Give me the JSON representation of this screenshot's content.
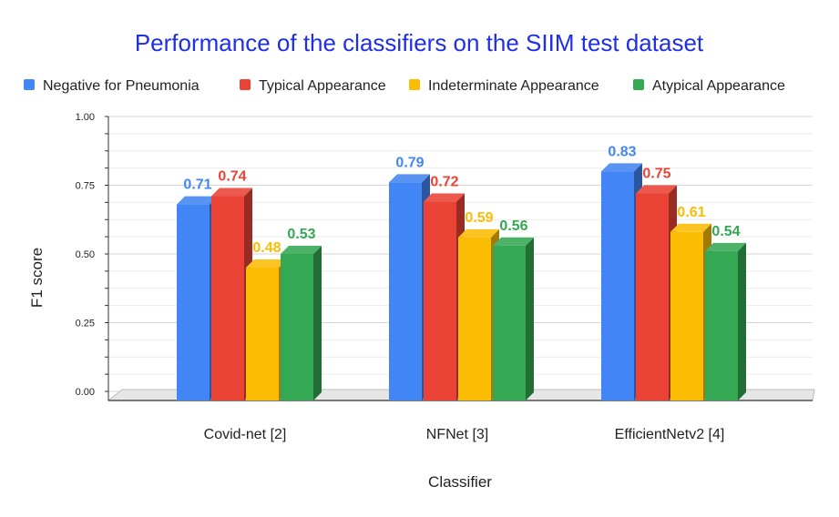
{
  "chart_data": {
    "type": "bar",
    "title": "Performance of the classifiers on the SIIM test dataset",
    "xlabel": "Classifier",
    "ylabel": "F1 score",
    "categories": [
      "Covid-net [2]",
      "NFNet [3]",
      "EfficientNetv2 [4]"
    ],
    "series": [
      {
        "name": "Negative for Pneumonia",
        "color": "#4285f4",
        "labels": [
          "0.71",
          "0.79",
          "0.83"
        ],
        "values": [
          0.71,
          0.79,
          0.83
        ]
      },
      {
        "name": "Typical Appearance",
        "color": "#ea4335",
        "labels": [
          "0.74",
          "0.72",
          "0.75"
        ],
        "values": [
          0.74,
          0.72,
          0.75
        ]
      },
      {
        "name": "Indeterminate Appearance",
        "color": "#fbbc04",
        "labels": [
          "0.48",
          "0.59",
          "0.61"
        ],
        "values": [
          0.48,
          0.59,
          0.61
        ]
      },
      {
        "name": "Atypical Appearance",
        "color": "#34a853",
        "labels": [
          "0.53",
          "0.56",
          "0.54"
        ],
        "values": [
          0.53,
          0.56,
          0.54
        ]
      }
    ],
    "yticks": [
      "0.00",
      "0.25",
      "0.50",
      "0.75",
      "1.00"
    ],
    "ytick_values": [
      0,
      0.25,
      0.5,
      0.75,
      1.0
    ],
    "ylim": [
      0,
      1.0
    ],
    "grid": true,
    "legend_position": "top"
  }
}
